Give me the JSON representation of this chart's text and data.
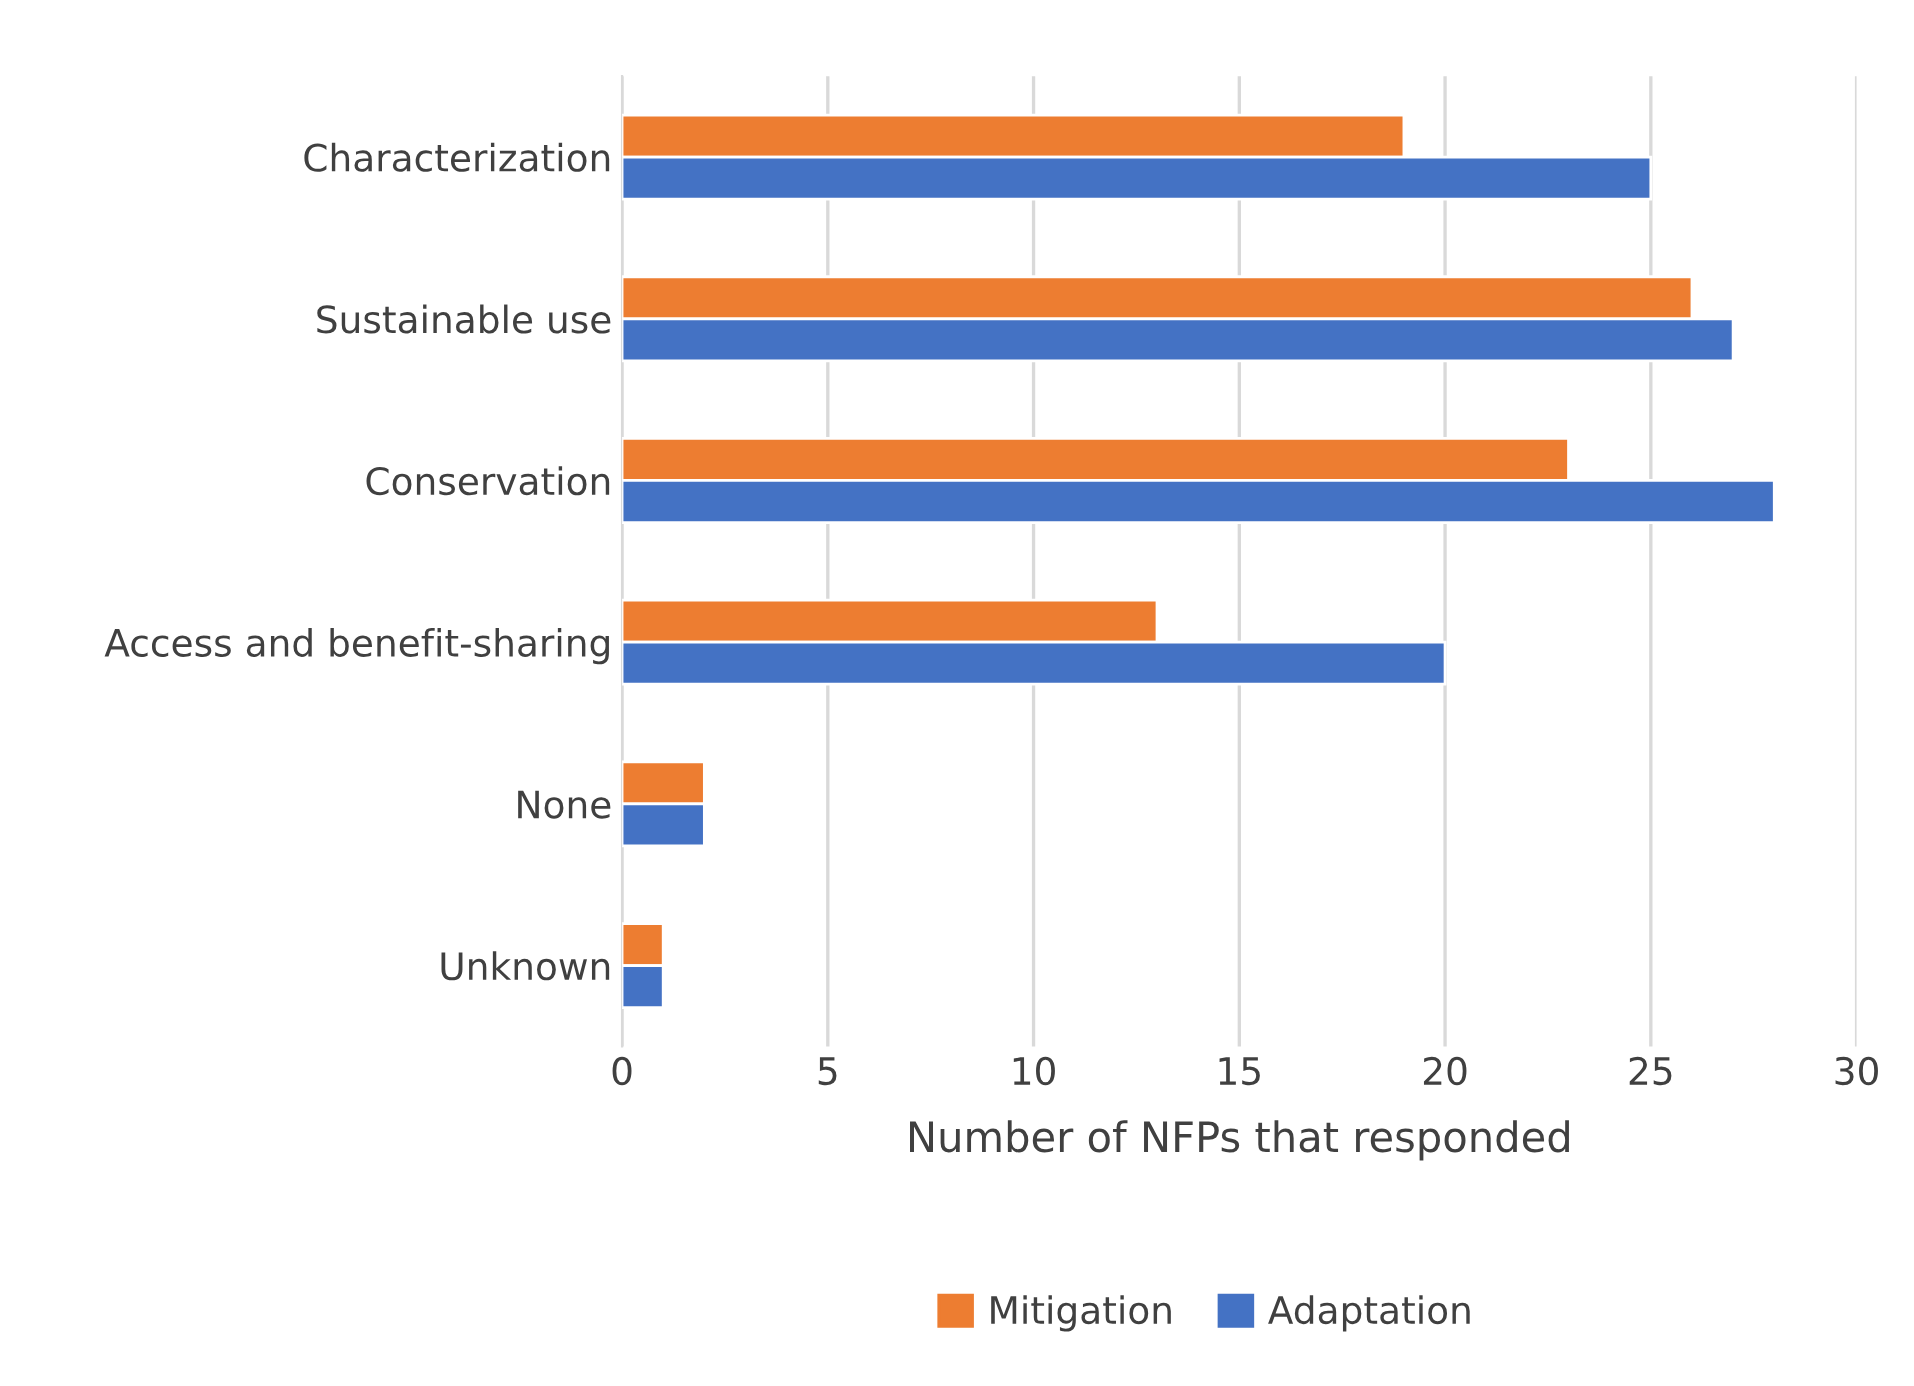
{
  "chart_data": {
    "type": "bar",
    "orientation": "horizontal",
    "xlabel": "Number of NFPs that responded",
    "categories": [
      "Characterization",
      "Sustainable use",
      "Conservation",
      "Access and benefit-sharing",
      "None",
      "Unknown"
    ],
    "series": [
      {
        "name": "Mitigation",
        "color": "#ed7d31",
        "values": [
          19,
          26,
          23,
          13,
          2,
          1
        ]
      },
      {
        "name": "Adaptation",
        "color": "#4472c4",
        "values": [
          25,
          27,
          28,
          20,
          2,
          1
        ]
      }
    ],
    "xlim": [
      0,
      30
    ],
    "xticks": [
      0,
      5,
      10,
      15,
      20,
      25,
      30
    ],
    "grid": "x",
    "legend": "bottom"
  }
}
